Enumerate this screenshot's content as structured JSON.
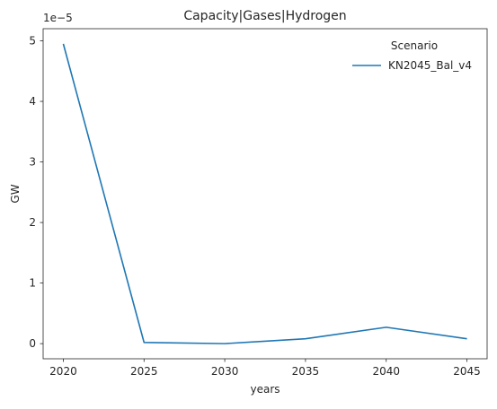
{
  "chart_data": {
    "type": "line",
    "title": "Capacity|Gases|Hydrogen",
    "xlabel": "years",
    "ylabel": "GW",
    "offset_label": "1e−5",
    "x": [
      2020,
      2025,
      2030,
      2035,
      2040,
      2045
    ],
    "xticks": [
      2020,
      2025,
      2030,
      2035,
      2040,
      2045
    ],
    "yticks": [
      0,
      1,
      2,
      3,
      4,
      5
    ],
    "ylim": [
      -0.25,
      5.2
    ],
    "xlim": [
      2018.75,
      2046.25
    ],
    "legend": {
      "title": "Scenario",
      "placement": "top-right"
    },
    "grid": false,
    "series": [
      {
        "name": "KN2045_Bal_v4",
        "color": "#1f77b4",
        "values": [
          4.95,
          0.02,
          0.0,
          0.08,
          0.27,
          0.08
        ]
      }
    ]
  }
}
